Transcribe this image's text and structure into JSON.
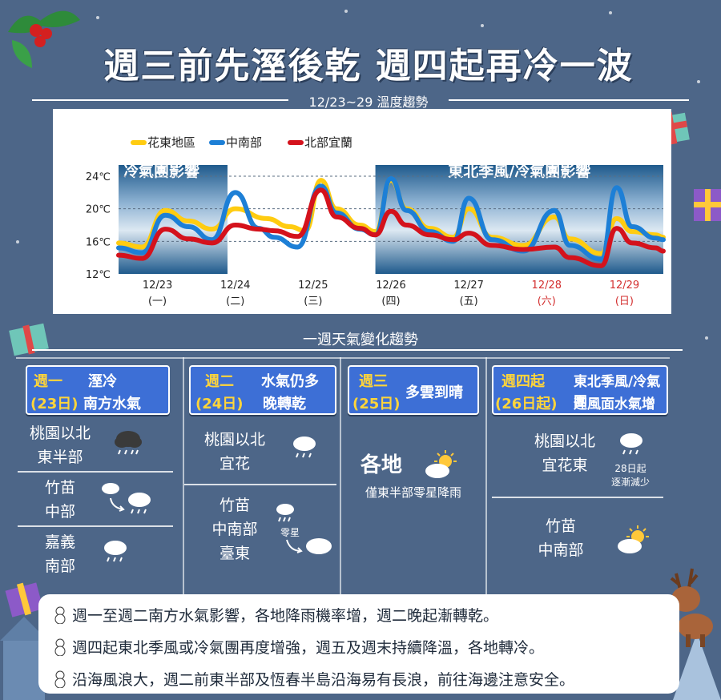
{
  "title": "週三前先溼後乾  週四起再冷一波",
  "subtitle": "12/23~29 溫度趨勢",
  "section_title": "一週天氣變化趨勢",
  "colors": {
    "hualien": "#ffcc11",
    "central": "#1d7fd6",
    "north": "#d4121c",
    "weekend": "#d32f2f",
    "accent": "#3d6fd6"
  },
  "chart_data": {
    "type": "line",
    "y_labels": [
      "24℃",
      "20℃",
      "16℃",
      "12℃"
    ],
    "y_ticks": [
      24,
      20,
      16,
      12
    ],
    "ylim": [
      12,
      24
    ],
    "x_dates": [
      "12/23",
      "12/24",
      "12/25",
      "12/26",
      "12/27",
      "12/28",
      "12/29"
    ],
    "x_days": [
      "(一)",
      "(二)",
      "(三)",
      "(四)",
      "(五)",
      "(六)",
      "(日)"
    ],
    "xlim": [
      0,
      7
    ],
    "legend": [
      "花東地區",
      "中南部",
      "北部宜蘭"
    ],
    "bands": [
      {
        "label": "冷氣團影響",
        "from": 0,
        "to": 1.4
      },
      {
        "label": "東北季風/冷氣團影響",
        "from": 3.3,
        "to": 7
      }
    ],
    "series": [
      {
        "name": "花東地區",
        "color": "#ffcc11",
        "x": [
          0,
          0.3,
          0.6,
          0.9,
          1.2,
          1.5,
          1.9,
          2.2,
          2.4,
          2.6,
          2.8,
          3.1,
          3.3,
          3.5,
          3.7,
          4.0,
          4.3,
          4.5,
          4.8,
          5.2,
          5.6,
          5.8,
          6.2,
          6.4,
          6.6,
          6.9,
          7
        ],
        "y": [
          15.8,
          15.3,
          19.8,
          18.5,
          17.5,
          20,
          18.8,
          17.8,
          17.3,
          23.5,
          20,
          18,
          17.2,
          23.5,
          20,
          17.6,
          16.5,
          20,
          16.5,
          15.5,
          19,
          16.3,
          14.5,
          18.8,
          17.2,
          16.8,
          16.5
        ]
      },
      {
        "name": "中南部",
        "color": "#1d7fd6",
        "x": [
          0,
          0.3,
          0.6,
          0.9,
          1.2,
          1.5,
          1.8,
          2.0,
          2.3,
          2.6,
          2.8,
          3.1,
          3.3,
          3.5,
          3.7,
          4.0,
          4.3,
          4.5,
          4.8,
          5.2,
          5.6,
          5.8,
          6.2,
          6.4,
          6.6,
          6.9,
          7
        ],
        "y": [
          15.2,
          14.6,
          19.2,
          17.8,
          16.2,
          22,
          17.6,
          16.5,
          15.3,
          22.8,
          19.5,
          17.5,
          16.8,
          23.7,
          19.8,
          17.2,
          16,
          21.3,
          16.2,
          14.8,
          19.8,
          15.5,
          13.8,
          22.6,
          17.8,
          16.4,
          16.2
        ]
      },
      {
        "name": "北部宜蘭",
        "color": "#d4121c",
        "x": [
          0,
          0.3,
          0.6,
          0.9,
          1.2,
          1.5,
          1.8,
          2.0,
          2.3,
          2.6,
          2.8,
          3.1,
          3.3,
          3.5,
          3.7,
          4.0,
          4.3,
          4.5,
          4.8,
          5.2,
          5.6,
          5.8,
          6.2,
          6.4,
          6.6,
          6.9,
          7
        ],
        "y": [
          14.3,
          13.9,
          17.5,
          16.3,
          15.8,
          18,
          17.5,
          17.3,
          16.6,
          22.3,
          19,
          17.6,
          16.8,
          19.7,
          18,
          16.8,
          16.2,
          17,
          15.5,
          15,
          15.3,
          14,
          13,
          17.6,
          15.8,
          15.2,
          14.8
        ]
      }
    ]
  },
  "days": [
    {
      "head_l1": "週一",
      "head_r1": "溼冷",
      "head_l2": "(23日)",
      "head_r2": "南方水氣",
      "rows": [
        {
          "l1": "桃園以北",
          "l2": "東半部"
        },
        {
          "l1": "竹苗",
          "l2": "中部"
        },
        {
          "l1": "嘉義",
          "l2": "南部"
        }
      ]
    },
    {
      "head_l1": "週二",
      "head_r1": "水氣仍多",
      "head_l2": "(24日)",
      "head_r2": "晚轉乾",
      "rows": [
        {
          "l1": "桃園以北",
          "l2": "宜花"
        },
        {
          "l1": "竹苗",
          "l2": "中南部",
          "l3": "臺東",
          "tag": "零星"
        }
      ]
    },
    {
      "head_l1": "週三",
      "head_l2": "(25日)",
      "head_r": "多雲到晴",
      "big": "各地",
      "note": "僅東半部零星降雨"
    },
    {
      "head_l1": "週四起",
      "head_r1": "東北季風/冷氣團",
      "head_l2": "(26日起)",
      "head_r2": "迎風面水氣增",
      "rows": [
        {
          "l1": "桃園以北",
          "l2": "宜花東",
          "note1": "28日起",
          "note2": "逐漸減少"
        },
        {
          "l1": "竹苗",
          "l2": "中南部"
        }
      ]
    }
  ],
  "notes": [
    "週一至週二南方水氣影響，各地降雨機率增，週二晚起漸轉乾。",
    "週四起東北季風或冷氣團再度增強，週五及週末持續降溫，各地轉冷。",
    "沿海風浪大，週二前東半部及恆春半島沿海易有長浪，前往海邊注意安全。"
  ]
}
